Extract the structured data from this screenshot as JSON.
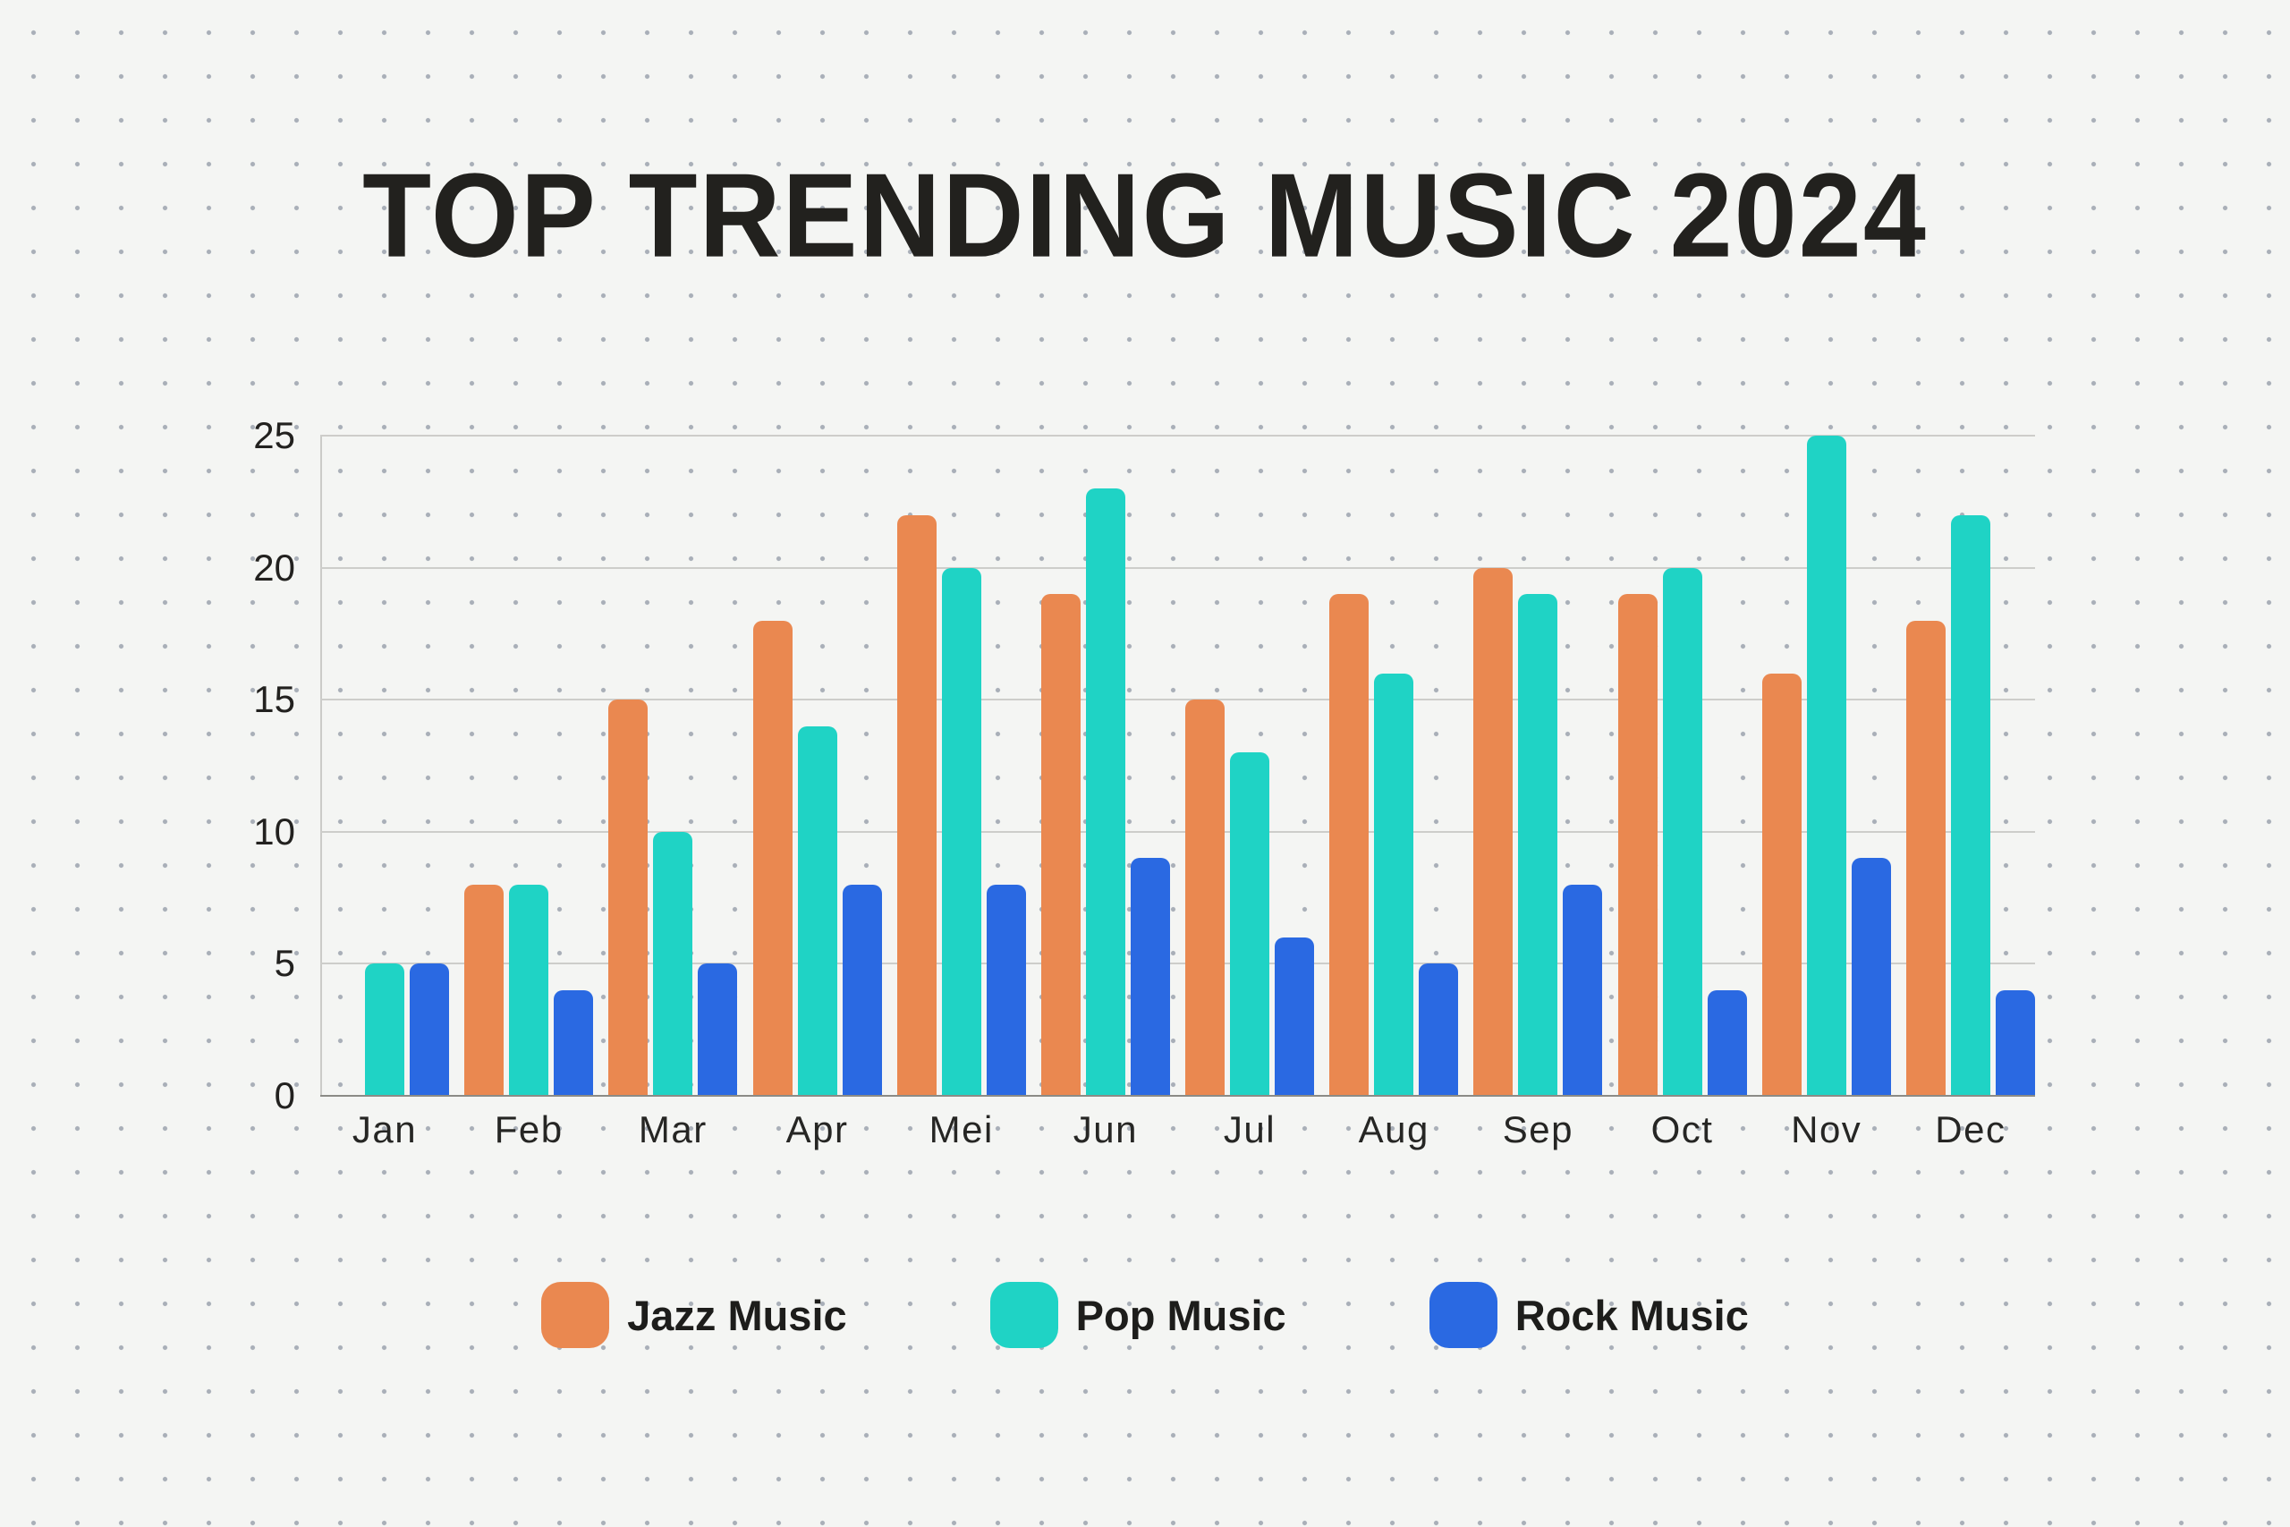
{
  "title": "TOP TRENDING MUSIC 2024",
  "chart_data": {
    "type": "bar",
    "title": "TOP TRENDING MUSIC 2024",
    "categories": [
      "Jan",
      "Feb",
      "Mar",
      "Apr",
      "Mei",
      "Jun",
      "Jul",
      "Aug",
      "Sep",
      "Oct",
      "Nov",
      "Dec"
    ],
    "series": [
      {
        "id": "jazz",
        "name": "Jazz Music",
        "color": "#EA8850",
        "values": [
          0,
          8,
          15,
          18,
          22,
          19,
          15,
          19,
          20,
          19,
          16,
          18
        ]
      },
      {
        "id": "pop",
        "name": "Pop Music",
        "color": "#1FD3C5",
        "values": [
          5,
          8,
          10,
          14,
          20,
          23,
          13,
          16,
          19,
          20,
          25,
          22
        ]
      },
      {
        "id": "rock",
        "name": "Rock Music",
        "color": "#2A69E2",
        "values": [
          5,
          4,
          5,
          8,
          8,
          9,
          6,
          5,
          8,
          4,
          9,
          4
        ]
      }
    ],
    "xlabel": "",
    "ylabel": "",
    "ylim": [
      0,
      25
    ],
    "yticks": [
      0,
      5,
      10,
      15,
      20,
      25
    ],
    "grid": "horizontal",
    "legend_position": "bottom"
  },
  "style": {
    "background": "#f4f5f3",
    "dot_color": "#a9afb8",
    "gridline_color": "#cdcdca",
    "axis_line_color": "#8b8b86",
    "text_color": "#22211e"
  }
}
